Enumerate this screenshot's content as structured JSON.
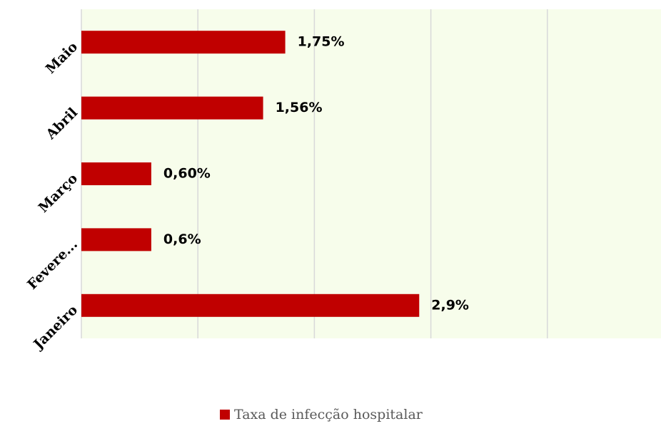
{
  "chart_data": {
    "type": "barh",
    "categories": [
      "Janeiro",
      "Fevere...",
      "Março",
      "Abril",
      "Maio"
    ],
    "series": [
      {
        "name": "Taxa de infecção hospitalar",
        "color": "#c00000",
        "values": [
          2.9,
          0.6,
          0.6,
          1.56,
          1.75
        ],
        "value_labels": [
          "2,9%",
          "0,6%",
          "0,60%",
          "1,56%",
          "1,75%"
        ]
      }
    ],
    "xlim": [
      0,
      5
    ],
    "xticks": [
      0,
      1,
      2,
      3,
      4,
      5
    ],
    "grid": true,
    "legend": "bottom"
  }
}
